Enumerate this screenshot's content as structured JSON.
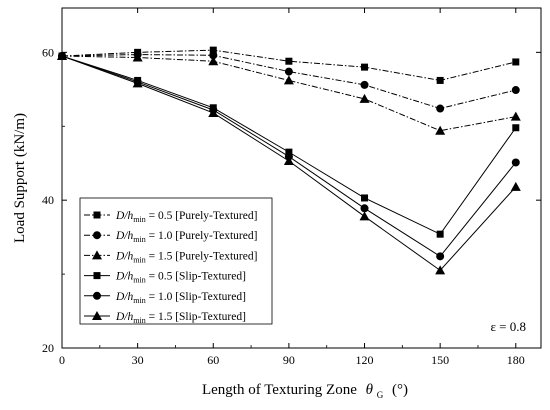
{
  "chart_data": {
    "type": "line",
    "xlabel": "Length of Texturing Zone",
    "xlabel_symbol": "θ",
    "xlabel_subscript": "G",
    "xlabel_unit": "(°)",
    "ylabel": "Load Support  (kN/m)",
    "xlim": [
      0,
      190
    ],
    "ylim": [
      20,
      66
    ],
    "xticks": [
      0,
      30,
      60,
      90,
      120,
      150,
      180
    ],
    "yticks": [
      20,
      40,
      60
    ],
    "annotation": "ε = 0.8",
    "legend_position": "lower-left",
    "series": [
      {
        "name": "= 0.5 [Purely-Textured]",
        "ratio": "0.5",
        "tag": "[Purely-Textured]",
        "marker": "square",
        "line": "dashdot",
        "x": [
          0,
          30,
          60,
          90,
          120,
          150,
          180
        ],
        "y": [
          59.5,
          60.0,
          60.3,
          58.8,
          58.0,
          56.2,
          58.7
        ]
      },
      {
        "name": "= 1.0 [Purely-Textured]",
        "ratio": "1.0",
        "tag": "[Purely-Textured]",
        "marker": "circle",
        "line": "dashdot",
        "x": [
          0,
          30,
          60,
          90,
          120,
          150,
          180
        ],
        "y": [
          59.5,
          59.7,
          59.6,
          57.4,
          55.6,
          52.4,
          54.9
        ]
      },
      {
        "name": "= 1.5 [Purely-Textured]",
        "ratio": "1.5",
        "tag": "[Purely-Textured]",
        "marker": "triangle",
        "line": "dashdot",
        "x": [
          0,
          30,
          60,
          90,
          120,
          150,
          180
        ],
        "y": [
          59.5,
          59.3,
          58.8,
          56.2,
          53.7,
          49.4,
          51.3
        ]
      },
      {
        "name": "= 0.5 [Slip-Textured]",
        "ratio": "0.5",
        "tag": "[Slip-Textured]",
        "marker": "square",
        "line": "solid",
        "x": [
          0,
          30,
          60,
          90,
          120,
          150,
          180
        ],
        "y": [
          59.5,
          56.2,
          52.5,
          46.5,
          40.3,
          35.4,
          49.8
        ]
      },
      {
        "name": "= 1.0 [Slip-Textured]",
        "ratio": "1.0",
        "tag": "[Slip-Textured]",
        "marker": "circle",
        "line": "solid",
        "x": [
          0,
          30,
          60,
          90,
          120,
          150,
          180
        ],
        "y": [
          59.5,
          56.0,
          52.2,
          45.9,
          38.9,
          32.4,
          45.1
        ]
      },
      {
        "name": "= 1.5 [Slip-Textured]",
        "ratio": "1.5",
        "tag": "[Slip-Textured]",
        "marker": "triangle",
        "line": "solid",
        "x": [
          0,
          30,
          60,
          90,
          120,
          150,
          180
        ],
        "y": [
          59.5,
          55.8,
          51.8,
          45.3,
          37.8,
          30.5,
          41.8
        ]
      }
    ],
    "legend_label": {
      "D": "D",
      "h": "h",
      "sub": "min"
    },
    "colors": {
      "line": "#000000",
      "background": "#ffffff"
    }
  }
}
